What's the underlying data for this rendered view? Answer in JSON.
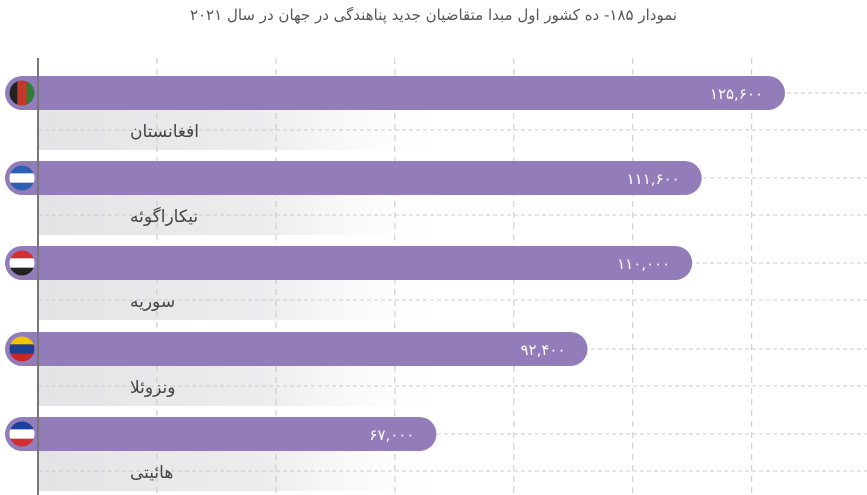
{
  "chart_data": {
    "type": "bar",
    "orientation": "horizontal",
    "title": "نمودار ۱۸۵- ده کشور اول مبدا متقاضیان جدید پناهندگی در جهان در سال ۲۰۲۱",
    "categories": [
      "افغانستان",
      "نیکاراگوئه",
      "سوریه",
      "ونزوئلا",
      "هائیتی"
    ],
    "values": [
      125600,
      111600,
      110000,
      92400,
      67000
    ],
    "data_labels": [
      "۱۲۵,۶۰۰",
      "۱۱۱,۶۰۰",
      "۱۱۰,۰۰۰",
      "۹۲,۴۰۰",
      "۶۷,۰۰۰"
    ],
    "flags": [
      "afghanistan-flag",
      "nicaragua-flag",
      "syria-flag",
      "venezuela-flag",
      "haiti-flag"
    ],
    "xlim": [
      0,
      140000
    ],
    "grid_step": 20000,
    "grid": true,
    "bar_color": "#937cba",
    "label_band_color": "#e4e4e6",
    "xlabel": "",
    "ylabel": ""
  }
}
